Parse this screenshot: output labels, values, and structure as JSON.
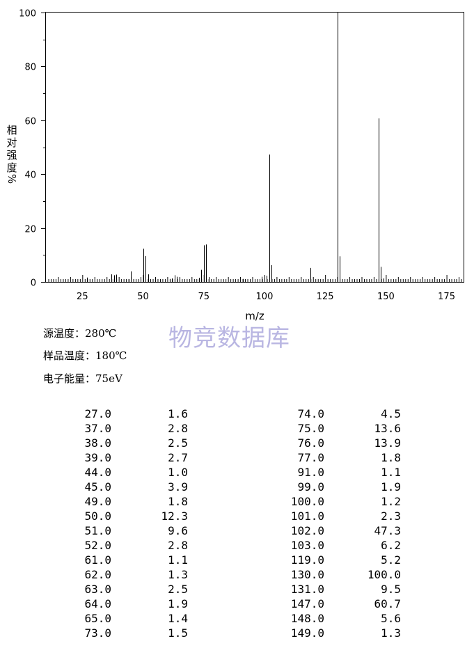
{
  "chart_data": {
    "type": "bar",
    "xlabel": "m/z",
    "ylabel_chars": [
      "相",
      "对",
      "强",
      "度",
      "%"
    ],
    "xlim": [
      10,
      182
    ],
    "ylim": [
      0,
      100
    ],
    "x_ticks": [
      25,
      50,
      75,
      100,
      125,
      150,
      175
    ],
    "y_ticks": [
      0,
      20,
      40,
      60,
      80,
      100
    ],
    "x_tick_labels": [
      "25",
      "50",
      "75",
      "100",
      "125",
      "150",
      "175"
    ],
    "y_tick_labels": [
      "0",
      "20",
      "40",
      "60",
      "80",
      "100"
    ],
    "peaks": [
      {
        "mz": 27.0,
        "intensity": 1.6
      },
      {
        "mz": 37.0,
        "intensity": 2.8
      },
      {
        "mz": 38.0,
        "intensity": 2.5
      },
      {
        "mz": 39.0,
        "intensity": 2.7
      },
      {
        "mz": 44.0,
        "intensity": 1.0
      },
      {
        "mz": 45.0,
        "intensity": 3.9
      },
      {
        "mz": 49.0,
        "intensity": 1.8
      },
      {
        "mz": 50.0,
        "intensity": 12.3
      },
      {
        "mz": 51.0,
        "intensity": 9.6
      },
      {
        "mz": 52.0,
        "intensity": 2.8
      },
      {
        "mz": 61.0,
        "intensity": 1.1
      },
      {
        "mz": 62.0,
        "intensity": 1.3
      },
      {
        "mz": 63.0,
        "intensity": 2.5
      },
      {
        "mz": 64.0,
        "intensity": 1.9
      },
      {
        "mz": 65.0,
        "intensity": 1.4
      },
      {
        "mz": 73.0,
        "intensity": 1.5
      },
      {
        "mz": 74.0,
        "intensity": 4.5
      },
      {
        "mz": 75.0,
        "intensity": 13.6
      },
      {
        "mz": 76.0,
        "intensity": 13.9
      },
      {
        "mz": 77.0,
        "intensity": 1.8
      },
      {
        "mz": 91.0,
        "intensity": 1.1
      },
      {
        "mz": 99.0,
        "intensity": 1.9
      },
      {
        "mz": 100.0,
        "intensity": 1.2
      },
      {
        "mz": 101.0,
        "intensity": 2.3
      },
      {
        "mz": 102.0,
        "intensity": 47.3
      },
      {
        "mz": 103.0,
        "intensity": 6.2
      },
      {
        "mz": 119.0,
        "intensity": 5.2
      },
      {
        "mz": 130.0,
        "intensity": 100.0
      },
      {
        "mz": 131.0,
        "intensity": 9.5
      },
      {
        "mz": 147.0,
        "intensity": 60.7
      },
      {
        "mz": 148.0,
        "intensity": 5.6
      },
      {
        "mz": 149.0,
        "intensity": 1.3
      }
    ]
  },
  "info": {
    "source_temp": "源温度：280℃",
    "sample_temp": "样品温度：180℃",
    "electron_energy": "电子能量：75eV"
  },
  "watermark": "物竞数据库",
  "table_left": [
    {
      "mz": "27.0",
      "ab": "1.6"
    },
    {
      "mz": "37.0",
      "ab": "2.8"
    },
    {
      "mz": "38.0",
      "ab": "2.5"
    },
    {
      "mz": "39.0",
      "ab": "2.7"
    },
    {
      "mz": "44.0",
      "ab": "1.0"
    },
    {
      "mz": "45.0",
      "ab": "3.9"
    },
    {
      "mz": "49.0",
      "ab": "1.8"
    },
    {
      "mz": "50.0",
      "ab": "12.3"
    },
    {
      "mz": "51.0",
      "ab": "9.6"
    },
    {
      "mz": "52.0",
      "ab": "2.8"
    },
    {
      "mz": "61.0",
      "ab": "1.1"
    },
    {
      "mz": "62.0",
      "ab": "1.3"
    },
    {
      "mz": "63.0",
      "ab": "2.5"
    },
    {
      "mz": "64.0",
      "ab": "1.9"
    },
    {
      "mz": "65.0",
      "ab": "1.4"
    },
    {
      "mz": "73.0",
      "ab": "1.5"
    }
  ],
  "table_right": [
    {
      "mz": "74.0",
      "ab": "4.5"
    },
    {
      "mz": "75.0",
      "ab": "13.6"
    },
    {
      "mz": "76.0",
      "ab": "13.9"
    },
    {
      "mz": "77.0",
      "ab": "1.8"
    },
    {
      "mz": "91.0",
      "ab": "1.1"
    },
    {
      "mz": "99.0",
      "ab": "1.9"
    },
    {
      "mz": "100.0",
      "ab": "1.2"
    },
    {
      "mz": "101.0",
      "ab": "2.3"
    },
    {
      "mz": "102.0",
      "ab": "47.3"
    },
    {
      "mz": "103.0",
      "ab": "6.2"
    },
    {
      "mz": "119.0",
      "ab": "5.2"
    },
    {
      "mz": "130.0",
      "ab": "100.0"
    },
    {
      "mz": "131.0",
      "ab": "9.5"
    },
    {
      "mz": "147.0",
      "ab": "60.7"
    },
    {
      "mz": "148.0",
      "ab": "5.6"
    },
    {
      "mz": "149.0",
      "ab": "1.3"
    }
  ]
}
